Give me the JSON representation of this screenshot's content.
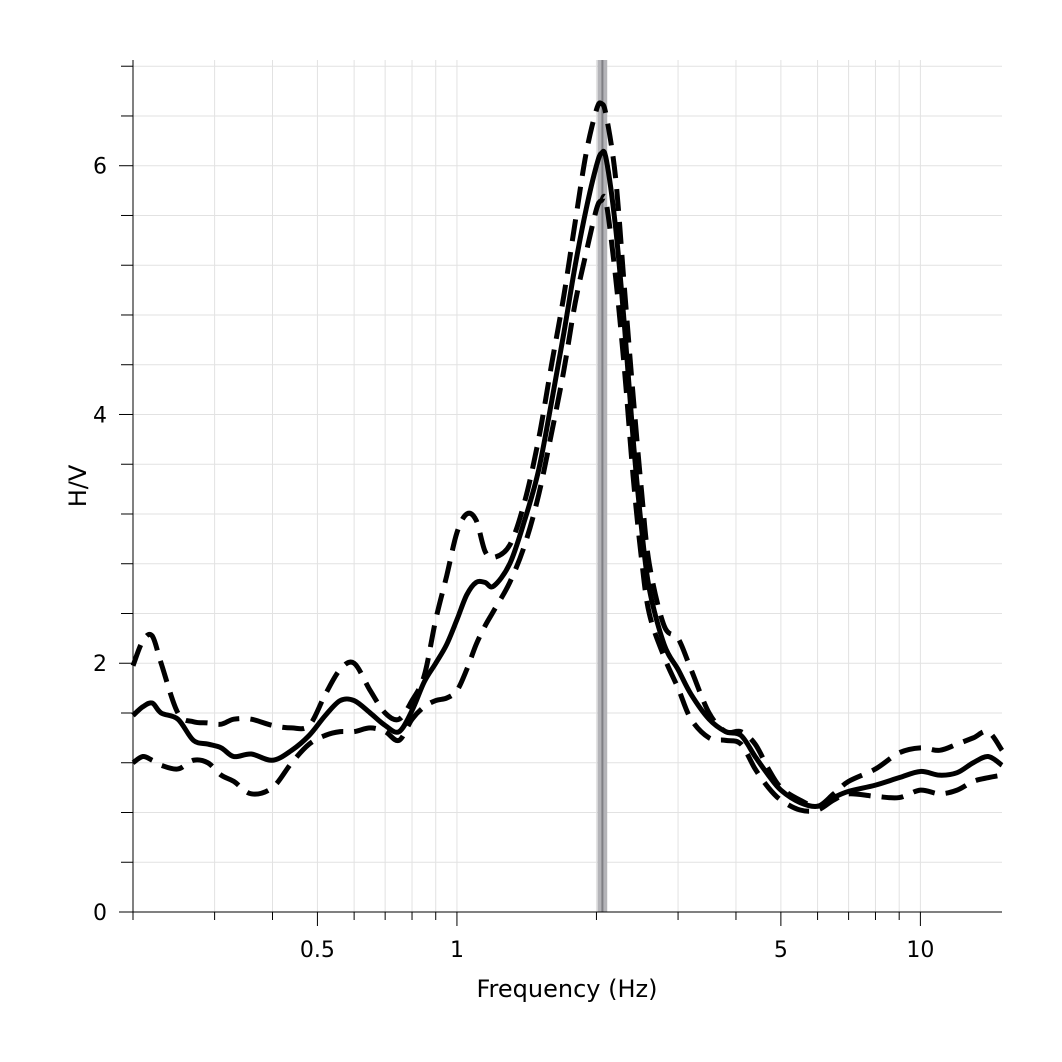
{
  "chart_data": {
    "type": "line",
    "title": "",
    "xlabel": "Frequency (Hz)",
    "ylabel": "H/V",
    "x_scale": "log",
    "xlim": [
      0.2,
      15
    ],
    "ylim": [
      0,
      6.85
    ],
    "x_major_ticks": [
      0.5,
      1,
      5,
      10
    ],
    "x_tick_labels": [
      "0.5",
      "1",
      "5",
      "10"
    ],
    "y_major_ticks": [
      0,
      2,
      4,
      6
    ],
    "y_tick_labels": [
      "0",
      "2",
      "4",
      "6"
    ],
    "grid": true,
    "legend": "none",
    "colors": {
      "curve": "#000000",
      "peak_band": "#b4b4b8",
      "peak_line": "#7f7f84",
      "grid": "#e2e2e2"
    },
    "peak_frequency": 2.06,
    "peak_band": [
      2.01,
      2.11
    ],
    "series": [
      {
        "style": "solid",
        "x": [
          0.2,
          0.21,
          0.22,
          0.23,
          0.25,
          0.27,
          0.29,
          0.31,
          0.33,
          0.36,
          0.4,
          0.44,
          0.48,
          0.52,
          0.56,
          0.6,
          0.65,
          0.7,
          0.75,
          0.8,
          0.85,
          0.9,
          0.95,
          1.0,
          1.05,
          1.1,
          1.15,
          1.2,
          1.3,
          1.4,
          1.5,
          1.6,
          1.7,
          1.8,
          1.9,
          2.0,
          2.05,
          2.1,
          2.2,
          2.3,
          2.4,
          2.5,
          2.6,
          2.8,
          3.0,
          3.2,
          3.5,
          3.8,
          4.1,
          4.4,
          4.7,
          5.0,
          5.5,
          6.0,
          6.5,
          7.0,
          8.0,
          9.0,
          10.0,
          11.0,
          12.0,
          13.0,
          14.0,
          15.0
        ],
        "y": [
          1.58,
          1.65,
          1.68,
          1.6,
          1.55,
          1.38,
          1.35,
          1.32,
          1.25,
          1.27,
          1.22,
          1.3,
          1.42,
          1.58,
          1.7,
          1.7,
          1.6,
          1.5,
          1.45,
          1.62,
          1.85,
          2.0,
          2.15,
          2.35,
          2.55,
          2.65,
          2.65,
          2.62,
          2.8,
          3.15,
          3.55,
          4.1,
          4.65,
          5.2,
          5.65,
          6.0,
          6.1,
          6.05,
          5.5,
          4.7,
          3.8,
          3.1,
          2.6,
          2.15,
          1.95,
          1.75,
          1.55,
          1.45,
          1.42,
          1.25,
          1.1,
          0.98,
          0.88,
          0.85,
          0.92,
          0.97,
          1.02,
          1.08,
          1.13,
          1.1,
          1.12,
          1.2,
          1.25,
          1.18
        ]
      },
      {
        "style": "dashed",
        "x": [
          0.2,
          0.21,
          0.22,
          0.23,
          0.25,
          0.27,
          0.29,
          0.31,
          0.33,
          0.36,
          0.4,
          0.44,
          0.48,
          0.52,
          0.56,
          0.6,
          0.65,
          0.7,
          0.75,
          0.8,
          0.85,
          0.9,
          0.95,
          1.0,
          1.05,
          1.1,
          1.15,
          1.2,
          1.3,
          1.4,
          1.5,
          1.6,
          1.7,
          1.8,
          1.9,
          2.0,
          2.05,
          2.1,
          2.2,
          2.3,
          2.4,
          2.5,
          2.6,
          2.8,
          3.0,
          3.2,
          3.5,
          3.8,
          4.1,
          4.4,
          4.7,
          5.0,
          5.5,
          6.0,
          6.5,
          7.0,
          8.0,
          9.0,
          10.0,
          11.0,
          12.0,
          13.0,
          14.0,
          15.0
        ],
        "y": [
          1.98,
          2.18,
          2.22,
          2.0,
          1.6,
          1.53,
          1.52,
          1.51,
          1.55,
          1.55,
          1.5,
          1.48,
          1.5,
          1.75,
          1.95,
          2.0,
          1.78,
          1.6,
          1.55,
          1.7,
          1.9,
          2.35,
          2.7,
          3.05,
          3.2,
          3.15,
          2.9,
          2.85,
          2.95,
          3.3,
          3.8,
          4.4,
          4.95,
          5.55,
          6.1,
          6.45,
          6.5,
          6.4,
          5.9,
          5.0,
          4.15,
          3.4,
          2.8,
          2.3,
          2.2,
          1.95,
          1.6,
          1.45,
          1.45,
          1.35,
          1.15,
          1.0,
          0.9,
          0.85,
          0.95,
          1.05,
          1.15,
          1.28,
          1.32,
          1.3,
          1.35,
          1.4,
          1.45,
          1.3
        ]
      },
      {
        "style": "dashed",
        "x": [
          0.2,
          0.21,
          0.22,
          0.23,
          0.25,
          0.27,
          0.29,
          0.31,
          0.33,
          0.36,
          0.4,
          0.44,
          0.48,
          0.52,
          0.56,
          0.6,
          0.65,
          0.7,
          0.75,
          0.8,
          0.85,
          0.9,
          0.95,
          1.0,
          1.05,
          1.1,
          1.15,
          1.2,
          1.3,
          1.4,
          1.5,
          1.6,
          1.7,
          1.8,
          1.9,
          2.0,
          2.05,
          2.1,
          2.2,
          2.3,
          2.4,
          2.5,
          2.6,
          2.8,
          3.0,
          3.2,
          3.5,
          3.8,
          4.1,
          4.4,
          4.7,
          5.0,
          5.5,
          6.0,
          6.5,
          7.0,
          8.0,
          9.0,
          10.0,
          11.0,
          12.0,
          13.0,
          14.0,
          15.0
        ],
        "y": [
          1.2,
          1.25,
          1.22,
          1.18,
          1.15,
          1.22,
          1.2,
          1.1,
          1.05,
          0.95,
          1.0,
          1.2,
          1.35,
          1.42,
          1.45,
          1.45,
          1.48,
          1.45,
          1.38,
          1.55,
          1.65,
          1.7,
          1.72,
          1.78,
          1.95,
          2.15,
          2.3,
          2.42,
          2.65,
          2.95,
          3.35,
          3.85,
          4.35,
          4.9,
          5.3,
          5.65,
          5.72,
          5.7,
          5.1,
          4.35,
          3.5,
          2.85,
          2.4,
          2.05,
          1.8,
          1.55,
          1.4,
          1.38,
          1.35,
          1.15,
          1.0,
          0.9,
          0.82,
          0.82,
          0.9,
          0.95,
          0.93,
          0.92,
          0.98,
          0.95,
          0.98,
          1.05,
          1.08,
          1.1
        ]
      }
    ]
  }
}
